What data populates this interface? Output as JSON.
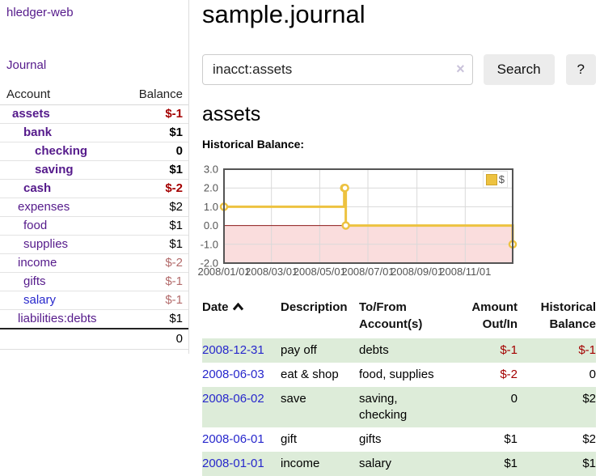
{
  "app": {
    "brand": "hledger-web",
    "nav_journal": "Journal"
  },
  "colors": {
    "link_visited_purple": "#551a8b",
    "link_blue": "#2727cc",
    "negative_strong": "#a40000",
    "negative_soft": "#b36b6b",
    "row_shade_green": "#ddecd9",
    "chart_series_gold": "#edc240",
    "chart_zero_line": "#8b1a1a",
    "chart_negative_fill": "#fadddd"
  },
  "sidebar": {
    "headers": {
      "account": "Account",
      "balance": "Balance"
    },
    "accounts": [
      {
        "name": "assets",
        "depth": 1,
        "bold": true,
        "balance": "$-1",
        "balance_style": "neg-strong",
        "link_color": "purple"
      },
      {
        "name": "bank",
        "depth": 2,
        "bold": true,
        "balance": "$1",
        "balance_style": "pos",
        "link_color": "purple"
      },
      {
        "name": "checking",
        "depth": 3,
        "bold": true,
        "balance": "0",
        "balance_style": "pos",
        "link_color": "purple"
      },
      {
        "name": "saving",
        "depth": 3,
        "bold": true,
        "balance": "$1",
        "balance_style": "pos",
        "link_color": "purple"
      },
      {
        "name": "cash",
        "depth": 2,
        "bold": true,
        "balance": "$-2",
        "balance_style": "neg-strong",
        "link_color": "purple"
      },
      {
        "name": "expenses",
        "depth": 1,
        "bold": false,
        "balance": "$2",
        "balance_style": "pos",
        "link_color": "purple"
      },
      {
        "name": "food",
        "depth": 2,
        "bold": false,
        "balance": "$1",
        "balance_style": "pos",
        "link_color": "purple"
      },
      {
        "name": "supplies",
        "depth": 2,
        "bold": false,
        "balance": "$1",
        "balance_style": "pos",
        "link_color": "purple"
      },
      {
        "name": "income",
        "depth": 1,
        "bold": false,
        "balance": "$-2",
        "balance_style": "neg-soft",
        "link_color": "purple"
      },
      {
        "name": "gifts",
        "depth": 2,
        "bold": false,
        "balance": "$-1",
        "balance_style": "neg-soft",
        "link_color": "purple"
      },
      {
        "name": "salary",
        "depth": 2,
        "bold": false,
        "balance": "$-1",
        "balance_style": "neg-soft",
        "link_color": "blue"
      },
      {
        "name": "liabilities:debts",
        "depth": 1,
        "bold": false,
        "balance": "$1",
        "balance_style": "pos",
        "link_color": "purple"
      }
    ],
    "total": "0"
  },
  "header": {
    "title": "sample.journal"
  },
  "search": {
    "value": "inacct:assets",
    "clear_icon": "×",
    "button": "Search",
    "help": "?"
  },
  "account_page": {
    "heading": "assets",
    "chart_label": "Historical Balance:"
  },
  "chart_data": {
    "type": "line",
    "step": true,
    "title": "Historical Balance:",
    "series": [
      {
        "name": "$",
        "color": "#edc240",
        "points": [
          {
            "date": "2008-01-01",
            "value": 1
          },
          {
            "date": "2008-06-01",
            "value": 2
          },
          {
            "date": "2008-06-02",
            "value": 2
          },
          {
            "date": "2008-06-03",
            "value": 0
          },
          {
            "date": "2008-12-31",
            "value": -1
          }
        ]
      }
    ],
    "x_range": [
      "2008-01-01",
      "2008-12-31"
    ],
    "x_ticks": [
      {
        "date": "2008-01-01",
        "label": "2008/01/01"
      },
      {
        "date": "2008-03-01",
        "label": "2008/03/01"
      },
      {
        "date": "2008-05-01",
        "label": "2008/05/01"
      },
      {
        "date": "2008-07-01",
        "label": "2008/07/01"
      },
      {
        "date": "2008-09-01",
        "label": "2008/09/01"
      },
      {
        "date": "2008-11-01",
        "label": "2008/11/01"
      }
    ],
    "y_ticks": [
      {
        "value": 3,
        "label": "3.0"
      },
      {
        "value": 2,
        "label": "2.0"
      },
      {
        "value": 1,
        "label": "1.0"
      },
      {
        "value": 0,
        "label": "0.0"
      },
      {
        "value": -1,
        "label": "-1.0"
      },
      {
        "value": -2,
        "label": "-2.0"
      }
    ],
    "ylim": [
      -2,
      3
    ],
    "grid": true,
    "legend": {
      "label": "$",
      "position": "top-right"
    }
  },
  "register": {
    "headers": {
      "date": "Date",
      "description": "Description",
      "tofrom": "To/From Account(s)",
      "amount": "Amount Out/In",
      "balance": "Historical Balance"
    },
    "rows": [
      {
        "date": "2008-12-31",
        "description": "pay off",
        "accounts": "debts",
        "amount": "$-1",
        "amount_neg": true,
        "balance": "$-1",
        "balance_neg": true,
        "shaded": true
      },
      {
        "date": "2008-06-03",
        "description": "eat & shop",
        "accounts": "food, supplies",
        "amount": "$-2",
        "amount_neg": true,
        "balance": "0",
        "balance_neg": false,
        "shaded": false
      },
      {
        "date": "2008-06-02",
        "description": "save",
        "accounts": "saving, checking",
        "amount": "0",
        "amount_neg": false,
        "balance": "$2",
        "balance_neg": false,
        "shaded": true
      },
      {
        "date": "2008-06-01",
        "description": "gift",
        "accounts": "gifts",
        "amount": "$1",
        "amount_neg": false,
        "balance": "$2",
        "balance_neg": false,
        "shaded": false
      },
      {
        "date": "2008-01-01",
        "description": "income",
        "accounts": "salary",
        "amount": "$1",
        "amount_neg": false,
        "balance": "$1",
        "balance_neg": false,
        "shaded": true
      }
    ]
  }
}
